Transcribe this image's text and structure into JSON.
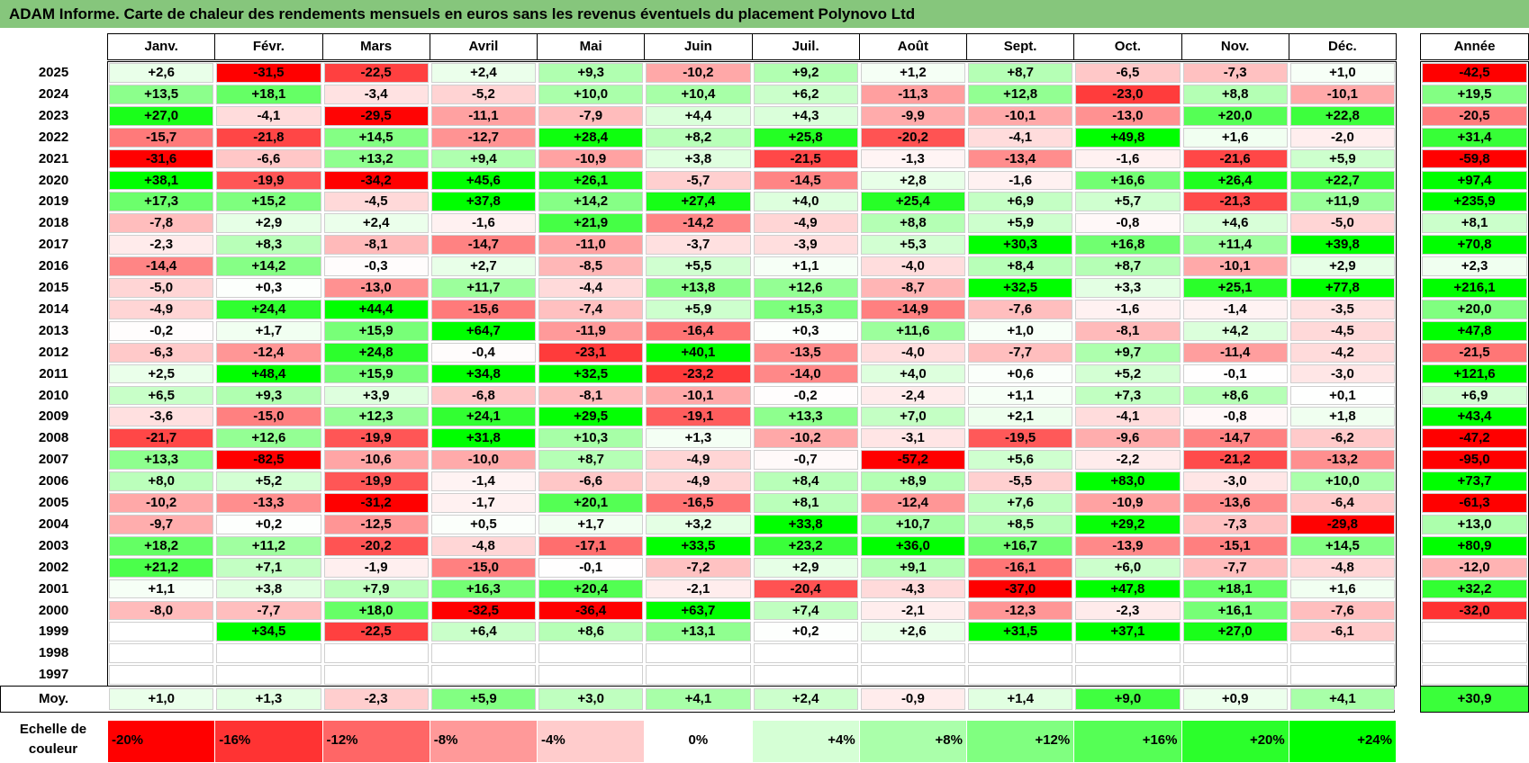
{
  "title": "ADAM Informe. Carte de chaleur des rendements mensuels en euros sans les revenus éventuels du placement Polynovo Ltd",
  "chart_data": {
    "type": "heatmap",
    "title": "ADAM Informe. Carte de chaleur des rendements mensuels en euros sans les revenus éventuels du placement Polynovo Ltd",
    "columns": [
      "Janv.",
      "Févr.",
      "Mars",
      "Avril",
      "Mai",
      "Juin",
      "Juil.",
      "Août",
      "Sept.",
      "Oct.",
      "Nov.",
      "Déc."
    ],
    "year_header": "Année",
    "rows": [
      {
        "year": "2025",
        "values": [
          "+2,6",
          "-31,5",
          "-22,5",
          "+2,4",
          "+9,3",
          "-10,2",
          "+9,2",
          "+1,2",
          "+8,7",
          "-6,5",
          "-7,3",
          "+1,0"
        ],
        "annual": "-42,5"
      },
      {
        "year": "2024",
        "values": [
          "+13,5",
          "+18,1",
          "-3,4",
          "-5,2",
          "+10,0",
          "+10,4",
          "+6,2",
          "-11,3",
          "+12,8",
          "-23,0",
          "+8,8",
          "-10,1"
        ],
        "annual": "+19,5"
      },
      {
        "year": "2023",
        "values": [
          "+27,0",
          "-4,1",
          "-29,5",
          "-11,1",
          "-7,9",
          "+4,4",
          "+4,3",
          "-9,9",
          "-10,1",
          "-13,0",
          "+20,0",
          "+22,8"
        ],
        "annual": "-20,5"
      },
      {
        "year": "2022",
        "values": [
          "-15,7",
          "-21,8",
          "+14,5",
          "-12,7",
          "+28,4",
          "+8,2",
          "+25,8",
          "-20,2",
          "-4,1",
          "+49,8",
          "+1,6",
          "-2,0"
        ],
        "annual": "+31,4"
      },
      {
        "year": "2021",
        "values": [
          "-31,6",
          "-6,6",
          "+13,2",
          "+9,4",
          "-10,9",
          "+3,8",
          "-21,5",
          "-1,3",
          "-13,4",
          "-1,6",
          "-21,6",
          "+5,9"
        ],
        "annual": "-59,8"
      },
      {
        "year": "2020",
        "values": [
          "+38,1",
          "-19,9",
          "-34,2",
          "+45,6",
          "+26,1",
          "-5,7",
          "-14,5",
          "+2,8",
          "-1,6",
          "+16,6",
          "+26,4",
          "+22,7"
        ],
        "annual": "+97,4"
      },
      {
        "year": "2019",
        "values": [
          "+17,3",
          "+15,2",
          "-4,5",
          "+37,8",
          "+14,2",
          "+27,4",
          "+4,0",
          "+25,4",
          "+6,9",
          "+5,7",
          "-21,3",
          "+11,9"
        ],
        "annual": "+235,9"
      },
      {
        "year": "2018",
        "values": [
          "-7,8",
          "+2,9",
          "+2,4",
          "-1,6",
          "+21,9",
          "-14,2",
          "-4,9",
          "+8,8",
          "+5,9",
          "-0,8",
          "+4,6",
          "-5,0"
        ],
        "annual": "+8,1"
      },
      {
        "year": "2017",
        "values": [
          "-2,3",
          "+8,3",
          "-8,1",
          "-14,7",
          "-11,0",
          "-3,7",
          "-3,9",
          "+5,3",
          "+30,3",
          "+16,8",
          "+11,4",
          "+39,8"
        ],
        "annual": "+70,8"
      },
      {
        "year": "2016",
        "values": [
          "-14,4",
          "+14,2",
          "-0,3",
          "+2,7",
          "-8,5",
          "+5,5",
          "+1,1",
          "-4,0",
          "+8,4",
          "+8,7",
          "-10,1",
          "+2,9"
        ],
        "annual": "+2,3"
      },
      {
        "year": "2015",
        "values": [
          "-5,0",
          "+0,3",
          "-13,0",
          "+11,7",
          "-4,4",
          "+13,8",
          "+12,6",
          "-8,7",
          "+32,5",
          "+3,3",
          "+25,1",
          "+77,8"
        ],
        "annual": "+216,1"
      },
      {
        "year": "2014",
        "values": [
          "-4,9",
          "+24,4",
          "+44,4",
          "-15,6",
          "-7,4",
          "+5,9",
          "+15,3",
          "-14,9",
          "-7,6",
          "-1,6",
          "-1,4",
          "-3,5"
        ],
        "annual": "+20,0"
      },
      {
        "year": "2013",
        "values": [
          "-0,2",
          "+1,7",
          "+15,9",
          "+64,7",
          "-11,9",
          "-16,4",
          "+0,3",
          "+11,6",
          "+1,0",
          "-8,1",
          "+4,2",
          "-4,5"
        ],
        "annual": "+47,8"
      },
      {
        "year": "2012",
        "values": [
          "-6,3",
          "-12,4",
          "+24,8",
          "-0,4",
          "-23,1",
          "+40,1",
          "-13,5",
          "-4,0",
          "-7,7",
          "+9,7",
          "-11,4",
          "-4,2"
        ],
        "annual": "-21,5"
      },
      {
        "year": "2011",
        "values": [
          "+2,5",
          "+48,4",
          "+15,9",
          "+34,8",
          "+32,5",
          "-23,2",
          "-14,0",
          "+4,0",
          "+0,6",
          "+5,2",
          "-0,1",
          "-3,0"
        ],
        "annual": "+121,6"
      },
      {
        "year": "2010",
        "values": [
          "+6,5",
          "+9,3",
          "+3,9",
          "-6,8",
          "-8,1",
          "-10,1",
          "-0,2",
          "-2,4",
          "+1,1",
          "+7,3",
          "+8,6",
          "+0,1"
        ],
        "annual": "+6,9"
      },
      {
        "year": "2009",
        "values": [
          "-3,6",
          "-15,0",
          "+12,3",
          "+24,1",
          "+29,5",
          "-19,1",
          "+13,3",
          "+7,0",
          "+2,1",
          "-4,1",
          "-0,8",
          "+1,8"
        ],
        "annual": "+43,4"
      },
      {
        "year": "2008",
        "values": [
          "-21,7",
          "+12,6",
          "-19,9",
          "+31,8",
          "+10,3",
          "+1,3",
          "-10,2",
          "-3,1",
          "-19,5",
          "-9,6",
          "-14,7",
          "-6,2"
        ],
        "annual": "-47,2"
      },
      {
        "year": "2007",
        "values": [
          "+13,3",
          "-82,5",
          "-10,6",
          "-10,0",
          "+8,7",
          "-4,9",
          "-0,7",
          "-57,2",
          "+5,6",
          "-2,2",
          "-21,2",
          "-13,2"
        ],
        "annual": "-95,0"
      },
      {
        "year": "2006",
        "values": [
          "+8,0",
          "+5,2",
          "-19,9",
          "-1,4",
          "-6,6",
          "-4,9",
          "+8,4",
          "+8,9",
          "-5,5",
          "+83,0",
          "-3,0",
          "+10,0"
        ],
        "annual": "+73,7"
      },
      {
        "year": "2005",
        "values": [
          "-10,2",
          "-13,3",
          "-31,2",
          "-1,7",
          "+20,1",
          "-16,5",
          "+8,1",
          "-12,4",
          "+7,6",
          "-10,9",
          "-13,6",
          "-6,4"
        ],
        "annual": "-61,3"
      },
      {
        "year": "2004",
        "values": [
          "-9,7",
          "+0,2",
          "-12,5",
          "+0,5",
          "+1,7",
          "+3,2",
          "+33,8",
          "+10,7",
          "+8,5",
          "+29,2",
          "-7,3",
          "-29,8"
        ],
        "annual": "+13,0"
      },
      {
        "year": "2003",
        "values": [
          "+18,2",
          "+11,2",
          "-20,2",
          "-4,8",
          "-17,1",
          "+33,5",
          "+23,2",
          "+36,0",
          "+16,7",
          "-13,9",
          "-15,1",
          "+14,5"
        ],
        "annual": "+80,9"
      },
      {
        "year": "2002",
        "values": [
          "+21,2",
          "+7,1",
          "-1,9",
          "-15,0",
          "-0,1",
          "-7,2",
          "+2,9",
          "+9,1",
          "-16,1",
          "+6,0",
          "-7,7",
          "-4,8"
        ],
        "annual": "-12,0"
      },
      {
        "year": "2001",
        "values": [
          "+1,1",
          "+3,8",
          "+7,9",
          "+16,3",
          "+20,4",
          "-2,1",
          "-20,4",
          "-4,3",
          "-37,0",
          "+47,8",
          "+18,1",
          "+1,6"
        ],
        "annual": "+32,2"
      },
      {
        "year": "2000",
        "values": [
          "-8,0",
          "-7,7",
          "+18,0",
          "-32,5",
          "-36,4",
          "+63,7",
          "+7,4",
          "-2,1",
          "-12,3",
          "-2,3",
          "+16,1",
          "-7,6"
        ],
        "annual": "-32,0"
      },
      {
        "year": "1999",
        "values": [
          "",
          "+34,5",
          "-22,5",
          "+6,4",
          "+8,6",
          "+13,1",
          "+0,2",
          "+2,6",
          "+31,5",
          "+37,1",
          "+27,0",
          "-6,1"
        ],
        "annual": ""
      },
      {
        "year": "1998",
        "values": [
          "",
          "",
          "",
          "",
          "",
          "",
          "",
          "",
          "",
          "",
          "",
          ""
        ],
        "annual": ""
      },
      {
        "year": "1997",
        "values": [
          "",
          "",
          "",
          "",
          "",
          "",
          "",
          "",
          "",
          "",
          "",
          ""
        ],
        "annual": ""
      }
    ],
    "average": {
      "label": "Moy.",
      "values": [
        "+1,0",
        "+1,3",
        "-2,3",
        "+5,9",
        "+3,0",
        "+4,1",
        "+2,4",
        "-0,9",
        "+1,4",
        "+9,0",
        "+0,9",
        "+4,1"
      ],
      "annual": "+30,9"
    },
    "color_scale": {
      "label": "Echelle de couleur",
      "steps": [
        "-20%",
        "-16%",
        "-12%",
        "-8%",
        "-4%",
        "0%",
        "+4%",
        "+8%",
        "+12%",
        "+16%",
        "+20%",
        "+24%"
      ],
      "negative_color": "#ff0000",
      "neutral_color": "#ffffff",
      "positive_color": "#00ff00"
    }
  }
}
